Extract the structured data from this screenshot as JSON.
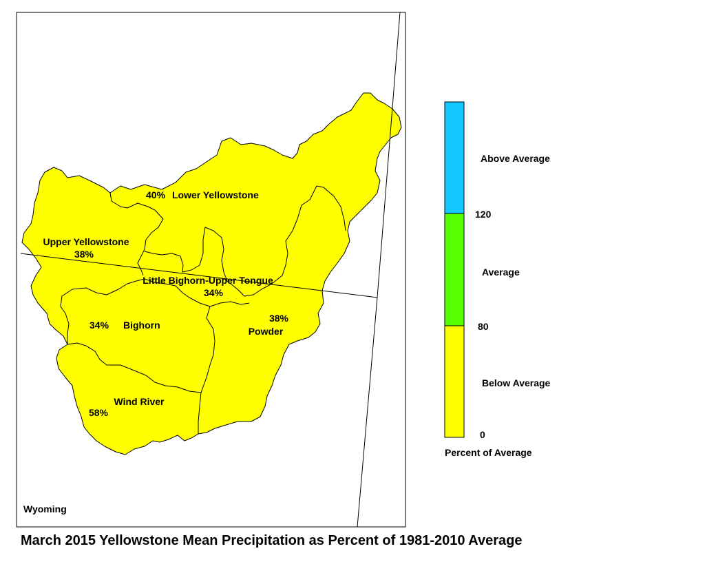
{
  "title": "March 2015 Yellowstone Mean Precipitation as Percent of 1981-2010 Average",
  "state_label": "Wyoming",
  "basins": [
    {
      "name": "Lower Yellowstone",
      "percent": "40%"
    },
    {
      "name": "Upper Yellowstone",
      "percent": "38%"
    },
    {
      "name": "Little Bighorn-Upper Tongue",
      "percent": "34%"
    },
    {
      "name": "Bighorn",
      "percent": "34%"
    },
    {
      "name": "Powder",
      "percent": "38%"
    },
    {
      "name": "Wind River",
      "percent": "58%"
    }
  ],
  "legend": {
    "title": "Percent of Average",
    "categories": [
      {
        "label": "Above Average",
        "color": "#12c6ff"
      },
      {
        "label": "Average",
        "color": "#55ff00"
      },
      {
        "label": "Below Average",
        "color": "#ffff00"
      }
    ],
    "breaks": [
      "120",
      "80",
      "0"
    ]
  },
  "fill_color": "#ffff00"
}
